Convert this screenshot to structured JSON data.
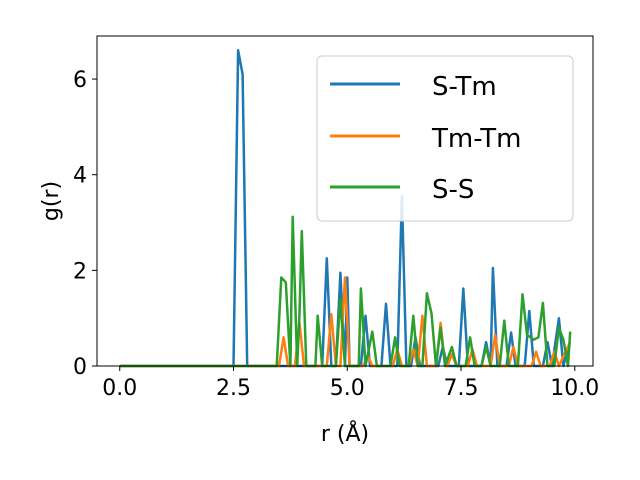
{
  "chart_data": {
    "type": "line",
    "xlabel": "r (Å)",
    "ylabel": "g(r)",
    "xlim": [
      -0.5,
      10.4
    ],
    "ylim": [
      0,
      6.9
    ],
    "xticks": [
      0.0,
      2.5,
      5.0,
      7.5,
      10.0
    ],
    "xtick_labels": [
      "0.0",
      "2.5",
      "5.0",
      "7.5",
      "10.0"
    ],
    "yticks": [
      0,
      2,
      4,
      6
    ],
    "ytick_labels": [
      "0",
      "2",
      "4",
      "6"
    ],
    "grid": false,
    "legend": "top-right",
    "series": [
      {
        "name": "S-Tm",
        "color": "#1f77b4",
        "points": [
          [
            0,
            0
          ],
          [
            2.5,
            0
          ],
          [
            2.6,
            6.6
          ],
          [
            2.7,
            6.1
          ],
          [
            2.8,
            0
          ],
          [
            4.45,
            0
          ],
          [
            4.55,
            2.25
          ],
          [
            4.65,
            0
          ],
          [
            4.75,
            0
          ],
          [
            4.85,
            1.95
          ],
          [
            4.95,
            0
          ],
          [
            5.0,
            1.85
          ],
          [
            5.05,
            0
          ],
          [
            5.3,
            0
          ],
          [
            5.4,
            1.05
          ],
          [
            5.5,
            0
          ],
          [
            5.75,
            0
          ],
          [
            5.85,
            1.3
          ],
          [
            5.95,
            0
          ],
          [
            6.1,
            0
          ],
          [
            6.2,
            3.55
          ],
          [
            6.3,
            0
          ],
          [
            6.4,
            0
          ],
          [
            6.5,
            0.6
          ],
          [
            6.6,
            0
          ],
          [
            7.0,
            0
          ],
          [
            7.1,
            0.4
          ],
          [
            7.2,
            0
          ],
          [
            7.45,
            0
          ],
          [
            7.55,
            1.62
          ],
          [
            7.65,
            0
          ],
          [
            7.95,
            0
          ],
          [
            8.05,
            0.5
          ],
          [
            8.15,
            0
          ],
          [
            8.2,
            2.05
          ],
          [
            8.3,
            0
          ],
          [
            8.5,
            0
          ],
          [
            8.6,
            0.7
          ],
          [
            8.7,
            0
          ],
          [
            8.9,
            0
          ],
          [
            9.0,
            1.15
          ],
          [
            9.1,
            0
          ],
          [
            9.3,
            0
          ],
          [
            9.4,
            0.5
          ],
          [
            9.5,
            0
          ],
          [
            9.65,
            1.0
          ],
          [
            9.75,
            0
          ],
          [
            9.85,
            0.4
          ],
          [
            9.9,
            0.45
          ]
        ]
      },
      {
        "name": "Tm-Tm",
        "color": "#ff7f0e",
        "points": [
          [
            0,
            0
          ],
          [
            3.5,
            0
          ],
          [
            3.6,
            0.6
          ],
          [
            3.7,
            0
          ],
          [
            3.85,
            0
          ],
          [
            3.95,
            0.9
          ],
          [
            4.05,
            0
          ],
          [
            4.15,
            0
          ],
          [
            4.55,
            0
          ],
          [
            4.65,
            1.08
          ],
          [
            4.75,
            0
          ],
          [
            4.85,
            0
          ],
          [
            4.95,
            1.85
          ],
          [
            5.05,
            0
          ],
          [
            5.35,
            0
          ],
          [
            5.45,
            0.22
          ],
          [
            5.55,
            0
          ],
          [
            6.0,
            0
          ],
          [
            6.1,
            0.35
          ],
          [
            6.2,
            0
          ],
          [
            6.35,
            0
          ],
          [
            6.45,
            0.35
          ],
          [
            6.55,
            0
          ],
          [
            6.65,
            1.05
          ],
          [
            6.75,
            0
          ],
          [
            6.95,
            0
          ],
          [
            7.05,
            0.9
          ],
          [
            7.15,
            0
          ],
          [
            7.2,
            0
          ],
          [
            7.3,
            0.25
          ],
          [
            7.4,
            0
          ],
          [
            7.65,
            0
          ],
          [
            7.75,
            0.35
          ],
          [
            7.85,
            0
          ],
          [
            8.15,
            0
          ],
          [
            8.25,
            0.65
          ],
          [
            8.35,
            0
          ],
          [
            8.55,
            0
          ],
          [
            8.65,
            0.4
          ],
          [
            8.75,
            0
          ],
          [
            9.05,
            0
          ],
          [
            9.15,
            0.3
          ],
          [
            9.25,
            0
          ],
          [
            9.45,
            0
          ],
          [
            9.55,
            0.3
          ],
          [
            9.65,
            0
          ],
          [
            9.9,
            0.5
          ]
        ]
      },
      {
        "name": "S-S",
        "color": "#2ca02c",
        "points": [
          [
            0,
            0
          ],
          [
            3.45,
            0
          ],
          [
            3.55,
            1.85
          ],
          [
            3.65,
            1.75
          ],
          [
            3.75,
            0
          ],
          [
            3.8,
            3.12
          ],
          [
            3.9,
            0
          ],
          [
            3.95,
            1.1
          ],
          [
            4.0,
            2.82
          ],
          [
            4.1,
            0
          ],
          [
            4.3,
            0
          ],
          [
            4.35,
            1.05
          ],
          [
            4.45,
            0
          ],
          [
            4.75,
            0
          ],
          [
            4.85,
            1.4
          ],
          [
            4.95,
            0
          ],
          [
            5.25,
            0
          ],
          [
            5.3,
            1.62
          ],
          [
            5.4,
            0
          ],
          [
            5.55,
            0.72
          ],
          [
            5.65,
            0
          ],
          [
            5.95,
            0
          ],
          [
            6.05,
            0.6
          ],
          [
            6.15,
            0
          ],
          [
            6.35,
            0
          ],
          [
            6.45,
            1.05
          ],
          [
            6.55,
            0
          ],
          [
            6.65,
            0
          ],
          [
            6.75,
            1.52
          ],
          [
            6.85,
            1.1
          ],
          [
            6.95,
            0
          ],
          [
            7.05,
            0.8
          ],
          [
            7.15,
            0
          ],
          [
            7.3,
            0.4
          ],
          [
            7.4,
            0
          ],
          [
            7.6,
            0
          ],
          [
            7.7,
            0.6
          ],
          [
            7.8,
            0
          ],
          [
            7.95,
            0
          ],
          [
            8.05,
            0.4
          ],
          [
            8.15,
            0
          ],
          [
            8.35,
            0
          ],
          [
            8.45,
            0.95
          ],
          [
            8.55,
            0
          ],
          [
            8.75,
            0
          ],
          [
            8.85,
            1.5
          ],
          [
            8.95,
            0.65
          ],
          [
            9.1,
            0.55
          ],
          [
            9.2,
            0.6
          ],
          [
            9.3,
            1.32
          ],
          [
            9.4,
            0
          ],
          [
            9.55,
            0
          ],
          [
            9.65,
            0.8
          ],
          [
            9.75,
            0.55
          ],
          [
            9.85,
            0
          ],
          [
            9.9,
            0.72
          ]
        ]
      }
    ]
  }
}
